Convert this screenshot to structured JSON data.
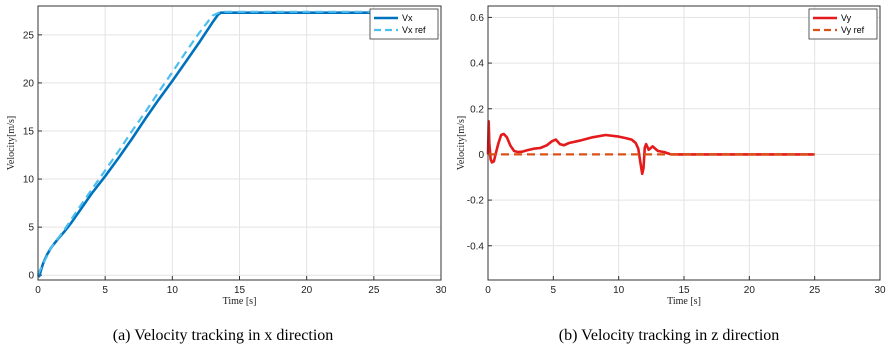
{
  "chart_data": [
    {
      "type": "line",
      "caption": "(a)  Velocity tracking in x direction",
      "xlabel": "Time [s]",
      "ylabel": "Velocity[m/s]",
      "xlim": [
        0,
        30
      ],
      "ylim": [
        -0.5,
        28
      ],
      "xticks": [
        "0",
        "5",
        "10",
        "15",
        "20",
        "25",
        "30"
      ],
      "yticks": [
        "0",
        "5",
        "10",
        "15",
        "20",
        "25"
      ],
      "grid": true,
      "legend_position": "top-right",
      "series": [
        {
          "name": "Vx",
          "style": "solid",
          "color": "#0072BD",
          "x": [
            0,
            0.1,
            0.2,
            0.35,
            0.5,
            0.7,
            1.0,
            1.5,
            2.0,
            2.5,
            3.0,
            4.0,
            5.0,
            6.0,
            7.0,
            8.0,
            9.0,
            10.0,
            11.0,
            12.0,
            13.0,
            13.4,
            13.6,
            15,
            20,
            25
          ],
          "y": [
            0.1,
            -0.1,
            0.4,
            1.1,
            1.6,
            2.2,
            2.9,
            3.8,
            4.6,
            5.5,
            6.5,
            8.5,
            10.3,
            12.2,
            14.2,
            16.3,
            18.3,
            20.2,
            22.2,
            24.2,
            26.3,
            27.1,
            27.3,
            27.3,
            27.3,
            27.3
          ]
        },
        {
          "name": "Vx ref",
          "style": "dashed",
          "color": "#4DBEEE",
          "x": [
            0,
            0.5,
            1.0,
            2.0,
            3.0,
            4.0,
            5.0,
            6.0,
            7.0,
            8.0,
            9.0,
            10.0,
            11.0,
            12.0,
            13.0,
            13.6,
            15,
            20,
            25
          ],
          "y": [
            0.1,
            1.5,
            2.9,
            4.8,
            6.9,
            8.9,
            10.9,
            12.9,
            15.0,
            17.0,
            19.1,
            21.1,
            23.2,
            25.2,
            27.0,
            27.4,
            27.4,
            27.4,
            27.4
          ]
        }
      ]
    },
    {
      "type": "line",
      "caption": "(b)  Velocity tracking in z direction",
      "xlabel": "Time [s]",
      "ylabel": "Velocity[m/s]",
      "xlim": [
        0,
        30
      ],
      "ylim": [
        -0.55,
        0.65
      ],
      "xticks": [
        "0",
        "5",
        "10",
        "15",
        "20",
        "25",
        "30"
      ],
      "yticks": [
        "-0.4",
        "-0.2",
        "0",
        "0.2",
        "0.4",
        "0.6"
      ],
      "grid": true,
      "legend_position": "top-right",
      "series": [
        {
          "name": "Vy",
          "style": "solid",
          "color": "#E41A1C",
          "x": [
            0,
            0.05,
            0.1,
            0.2,
            0.3,
            0.45,
            0.6,
            0.8,
            1.0,
            1.2,
            1.45,
            1.7,
            2.0,
            2.3,
            2.6,
            3.0,
            3.5,
            4.0,
            4.5,
            4.9,
            5.2,
            5.5,
            5.8,
            6.2,
            7.0,
            8.0,
            9.0,
            10.0,
            10.5,
            11.0,
            11.3,
            11.5,
            11.65,
            11.8,
            11.9,
            12.0,
            12.1,
            12.3,
            12.6,
            13.0,
            13.5,
            14,
            16,
            20,
            25
          ],
          "y": [
            0.0,
            0.145,
            0.05,
            -0.02,
            -0.035,
            -0.03,
            0.005,
            0.05,
            0.085,
            0.09,
            0.075,
            0.04,
            0.015,
            0.01,
            0.012,
            0.018,
            0.025,
            0.028,
            0.04,
            0.058,
            0.065,
            0.045,
            0.04,
            0.05,
            0.06,
            0.075,
            0.085,
            0.078,
            0.072,
            0.065,
            0.05,
            0.025,
            -0.03,
            -0.085,
            -0.06,
            0.03,
            0.045,
            0.02,
            0.035,
            0.015,
            0.01,
            0.0,
            0.0,
            0.0,
            0.0
          ]
        },
        {
          "name": "Vy ref",
          "style": "dashed",
          "color": "#D95319",
          "x": [
            0,
            25
          ],
          "y": [
            0,
            0
          ]
        }
      ]
    }
  ]
}
